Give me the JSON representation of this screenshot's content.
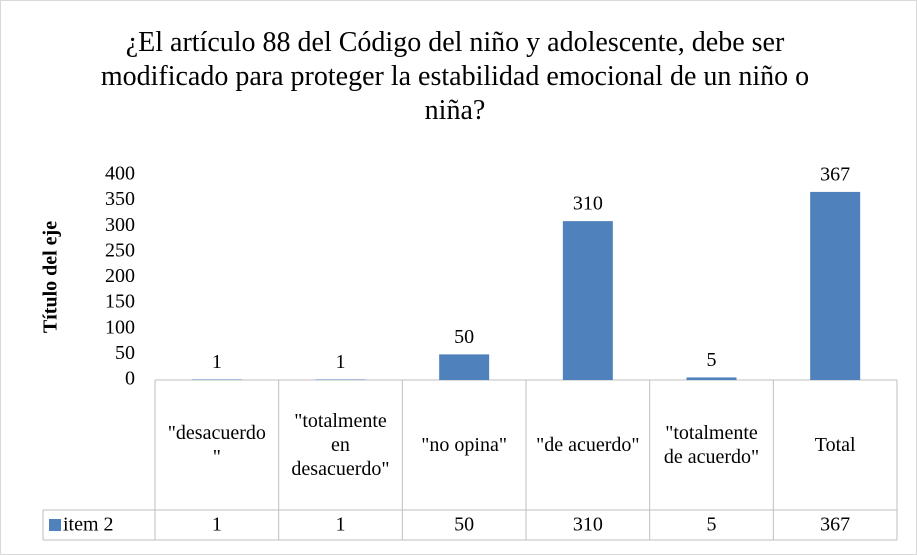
{
  "chart_data": {
    "type": "bar",
    "title": "¿El artículo 88 del Código del niño y adolescente, debe ser modificado para proteger la estabilidad emocional de un niño o niña?",
    "y_label": "Título del eje",
    "categories": [
      "\"desacuerdo\"",
      "\"totalmente en desacuerdo\"",
      "\"no opina\"",
      "\"de acuerdo\"",
      "\"totalmente de acuerdo\"",
      "Total"
    ],
    "series": [
      {
        "name": "item 2",
        "color": "#4f81bd",
        "values": [
          1,
          1,
          50,
          310,
          5,
          367
        ]
      }
    ],
    "ylim": [
      0,
      400
    ],
    "yticks": [
      0,
      50,
      100,
      150,
      200,
      250,
      300,
      350,
      400
    ]
  }
}
